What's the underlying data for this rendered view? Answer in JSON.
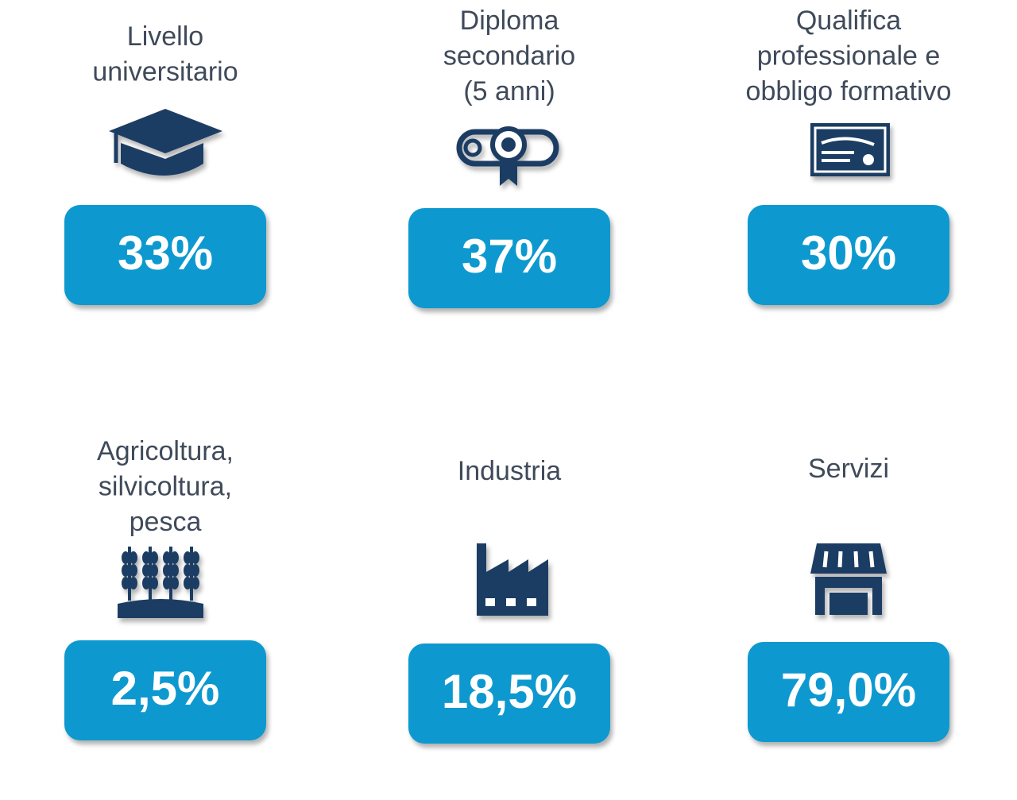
{
  "tiles": [
    {
      "label_lines": [
        "Livello",
        "universitario"
      ],
      "value": "33%"
    },
    {
      "label_lines": [
        "Diploma",
        "secondario",
        "(5 anni)"
      ],
      "value": "37%"
    },
    {
      "label_lines": [
        "Qualifica",
        "professionale e",
        "obbligo formativo"
      ],
      "value": "30%"
    },
    {
      "label_lines": [
        "Agricoltura,",
        "silvicoltura,",
        "pesca"
      ],
      "value": "2,5%"
    },
    {
      "label_lines": [
        "Industria"
      ],
      "value": "18,5%"
    },
    {
      "label_lines": [
        "Servizi"
      ],
      "value": "79,0%"
    }
  ]
}
